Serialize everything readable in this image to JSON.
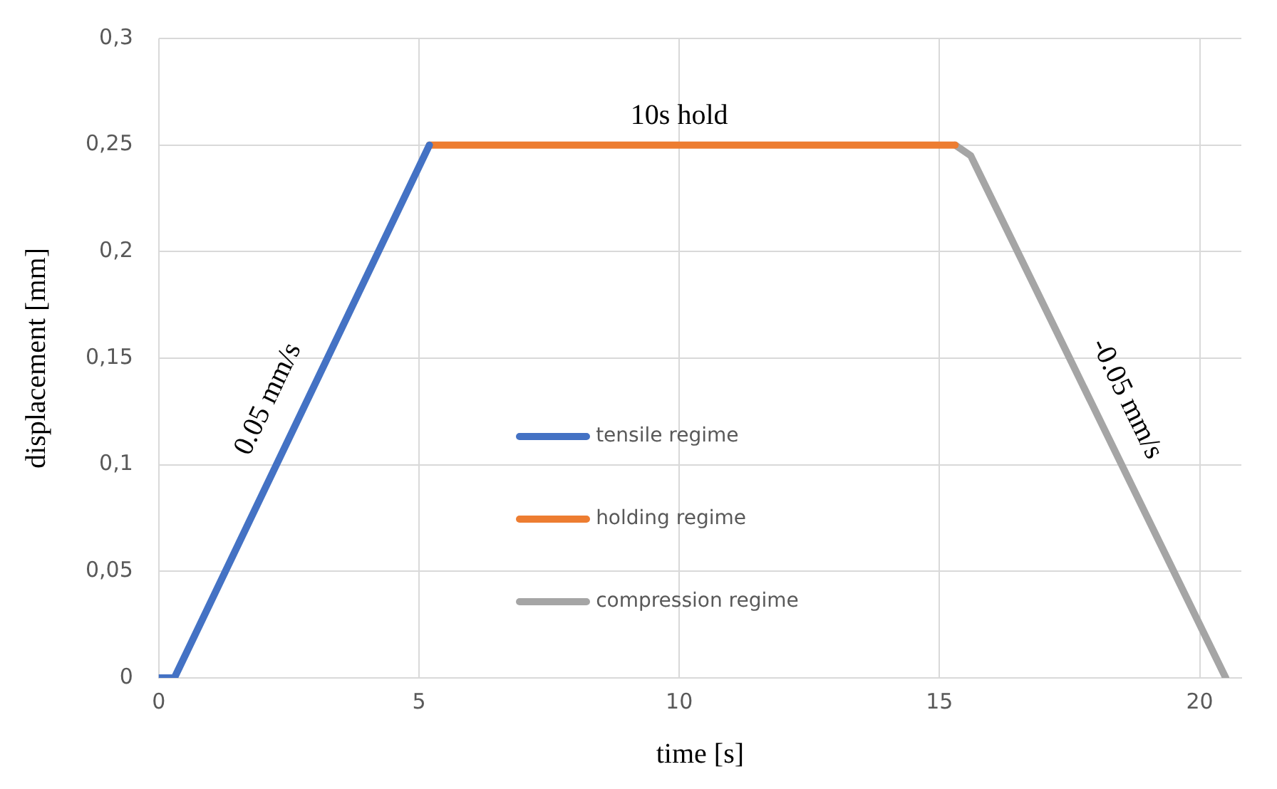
{
  "chart_data": {
    "type": "line",
    "xlabel": "time [s]",
    "ylabel": "displacement [mm]",
    "xlim": [
      0,
      20.8
    ],
    "xticks": [
      0,
      5,
      10,
      15,
      20
    ],
    "ylim": [
      0,
      0.3
    ],
    "yticks": [
      {
        "value": 0,
        "label": "0"
      },
      {
        "value": 0.05,
        "label": "0,05"
      },
      {
        "value": 0.1,
        "label": "0,1"
      },
      {
        "value": 0.15,
        "label": "0,15"
      },
      {
        "value": 0.2,
        "label": "0,2"
      },
      {
        "value": 0.25,
        "label": "0,25"
      },
      {
        "value": 0.3,
        "label": "0,3"
      }
    ],
    "grid": true,
    "legend": "bottom",
    "marker": "none",
    "line_style": "solid",
    "series": [
      {
        "name": "tensile regime",
        "color": "#4472c4",
        "x": [
          0,
          0.3,
          5.2
        ],
        "values": [
          0,
          0,
          0.25
        ]
      },
      {
        "name": "holding regime",
        "color": "#ed7d31",
        "x": [
          5.2,
          15.3
        ],
        "values": [
          0.25,
          0.25
        ]
      },
      {
        "name": "compression regime",
        "color": "#a5a5a5",
        "x": [
          15.3,
          15.6,
          20.5
        ],
        "values": [
          0.25,
          0.245,
          0
        ]
      }
    ],
    "annotations": [
      {
        "text": "10s hold",
        "x": 10,
        "y": 0.25
      },
      {
        "text": "0.05 mm/s",
        "x": 2.6,
        "y": 0.125
      },
      {
        "text": "-0.05 mm/s",
        "x": 18.1,
        "y": 0.125
      }
    ]
  }
}
